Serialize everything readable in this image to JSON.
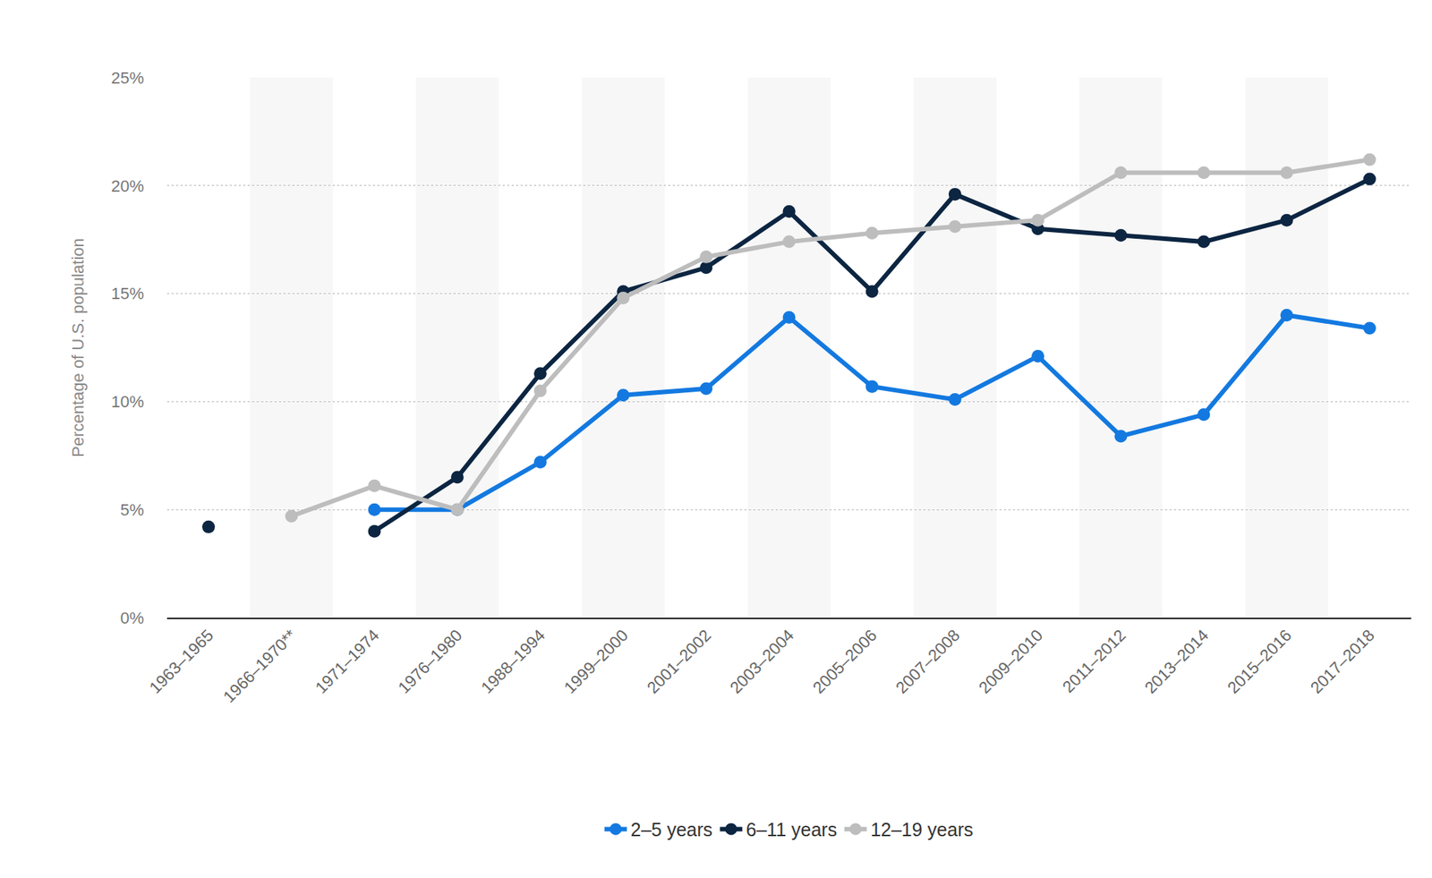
{
  "chart_data": {
    "type": "line",
    "y_label": "Percentage of U.S. population",
    "categories": [
      "1963–1965",
      "1966–1970**",
      "1971–1974",
      "1976–1980",
      "1988–1994",
      "1999–2000",
      "2001–2002",
      "2003–2004",
      "2005–2006",
      "2007–2008",
      "2009–2010",
      "2011–2012",
      "2013–2014",
      "2015–2016",
      "2017–2018"
    ],
    "series": [
      {
        "name": "2–5 years",
        "color": "#1379e0",
        "values": [
          null,
          null,
          5.0,
          5.0,
          7.2,
          10.3,
          10.6,
          13.9,
          10.7,
          10.1,
          12.1,
          8.4,
          9.4,
          14.0,
          13.4
        ]
      },
      {
        "name": "6–11 years",
        "color": "#0c2541",
        "values": [
          4.2,
          null,
          4.0,
          6.5,
          11.3,
          15.1,
          16.2,
          18.8,
          15.1,
          19.6,
          18.0,
          17.7,
          17.4,
          18.4,
          20.3
        ]
      },
      {
        "name": "12–19 years",
        "color": "#bdbdbd",
        "values": [
          null,
          4.7,
          6.1,
          5.0,
          10.5,
          14.8,
          16.7,
          17.4,
          17.8,
          18.1,
          18.4,
          20.6,
          20.6,
          20.6,
          21.2
        ]
      }
    ],
    "ylim": [
      0,
      25
    ],
    "yticks": [
      {
        "value": 0,
        "label": "0%"
      },
      {
        "value": 5,
        "label": "5%"
      },
      {
        "value": 10,
        "label": "10%"
      },
      {
        "value": 15,
        "label": "15%"
      },
      {
        "value": 20,
        "label": "20%"
      },
      {
        "value": 25,
        "label": "25%"
      }
    ],
    "grid": true,
    "legend": "bottom",
    "marker": "circle"
  }
}
